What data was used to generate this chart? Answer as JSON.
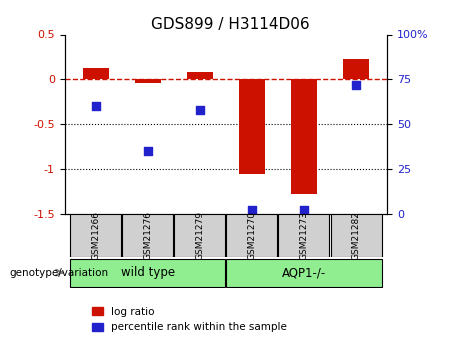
{
  "title": "GDS899 / H3114D06",
  "samples": [
    "GSM21266",
    "GSM21276",
    "GSM21279",
    "GSM21270",
    "GSM21273",
    "GSM21282"
  ],
  "log_ratio": [
    0.13,
    -0.04,
    0.08,
    -1.05,
    -1.28,
    0.23
  ],
  "percentile_rank": [
    60,
    35,
    58,
    2,
    2,
    72
  ],
  "left_ylim": [
    -1.5,
    0.5
  ],
  "right_ylim": [
    0,
    100
  ],
  "left_yticks": [
    -1.5,
    -1.0,
    -0.5,
    0.0,
    0.5
  ],
  "right_yticks": [
    0,
    25,
    50,
    75,
    100
  ],
  "bar_color": "#cc1100",
  "dot_color": "#2222cc",
  "dotted_lines": [
    -0.5,
    -1.0
  ],
  "bar_width": 0.5,
  "dot_size": 40,
  "group_box_color": "#d0d0d0",
  "legend_bar_label": "log ratio",
  "legend_dot_label": "percentile rank within the sample"
}
